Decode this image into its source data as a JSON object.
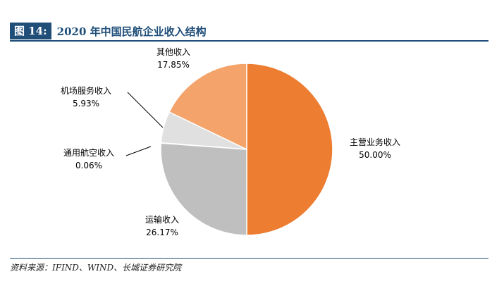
{
  "header": {
    "figure_label": "图 14:",
    "title": "2020 年中国民航企业收入结构"
  },
  "source": "资料来源：IFIND、WIND、长城证券研究院",
  "colors": {
    "header_blue": "#1f4e79",
    "slice_main": "#ed7d31",
    "slice_transport": "#bfbfbf",
    "slice_general": "#d9d9d9",
    "slice_airport": "#e0e0e0",
    "slice_other": "#f4a46a"
  },
  "chart_data": {
    "type": "pie",
    "title": "2020 年中国民航企业收入结构",
    "start": "12 o'clock, clockwise",
    "slices": [
      {
        "name": "主营业务收入",
        "value": 50.0,
        "label": "50.00%",
        "color": "#ed7d31"
      },
      {
        "name": "运输收入",
        "value": 26.17,
        "label": "26.17%",
        "color": "#bfbfbf"
      },
      {
        "name": "通用航空收入",
        "value": 0.06,
        "label": "0.06%",
        "color": "#d9d9d9"
      },
      {
        "name": "机场服务收入",
        "value": 5.93,
        "label": "5.93%",
        "color": "#e0e0e0"
      },
      {
        "name": "其他收入",
        "value": 17.85,
        "label": "17.85%",
        "color": "#f4a46a"
      }
    ]
  }
}
